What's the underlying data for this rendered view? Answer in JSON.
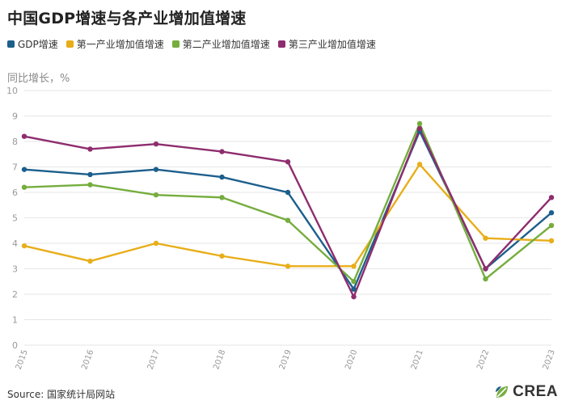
{
  "header": {
    "title": "中国GDP增速与各产业增加值增速"
  },
  "footer": {
    "source": "Source: 国家统计局网站",
    "logo_text": "CREA"
  },
  "colors": {
    "gdp": "#1c5f8c",
    "primary": "#e8ae1a",
    "secondary": "#75ad3e",
    "tertiary": "#8e2d6e",
    "grid": "#e6e6e6",
    "axis_text": "#9a9a9a"
  },
  "chart_data": {
    "type": "line",
    "ylabel": "同比增长，%",
    "x": [
      "2015",
      "2016",
      "2017",
      "2018",
      "2019",
      "2020",
      "2021",
      "2022",
      "2023"
    ],
    "ylim": [
      0,
      10
    ],
    "yticks": [
      "0",
      "1",
      "2",
      "3",
      "4",
      "5",
      "6",
      "7",
      "8",
      "9",
      "10"
    ],
    "grid": true,
    "legend_position": "top-left",
    "series": [
      {
        "name": "GDP增速",
        "color": "#1c5f8c",
        "values": [
          6.9,
          6.7,
          6.9,
          6.6,
          6.0,
          2.2,
          8.4,
          3.0,
          5.2
        ]
      },
      {
        "name": "第一产业增加值增速",
        "color": "#e8ae1a",
        "values": [
          3.9,
          3.3,
          4.0,
          3.5,
          3.1,
          3.1,
          7.1,
          4.2,
          4.1
        ]
      },
      {
        "name": "第二产业增加值增速",
        "color": "#75ad3e",
        "values": [
          6.2,
          6.3,
          5.9,
          5.8,
          4.9,
          2.5,
          8.7,
          2.6,
          4.7
        ]
      },
      {
        "name": "第三产业增加值增速",
        "color": "#8e2d6e",
        "values": [
          8.2,
          7.7,
          7.9,
          7.6,
          7.2,
          1.9,
          8.5,
          3.0,
          5.8
        ]
      }
    ]
  }
}
